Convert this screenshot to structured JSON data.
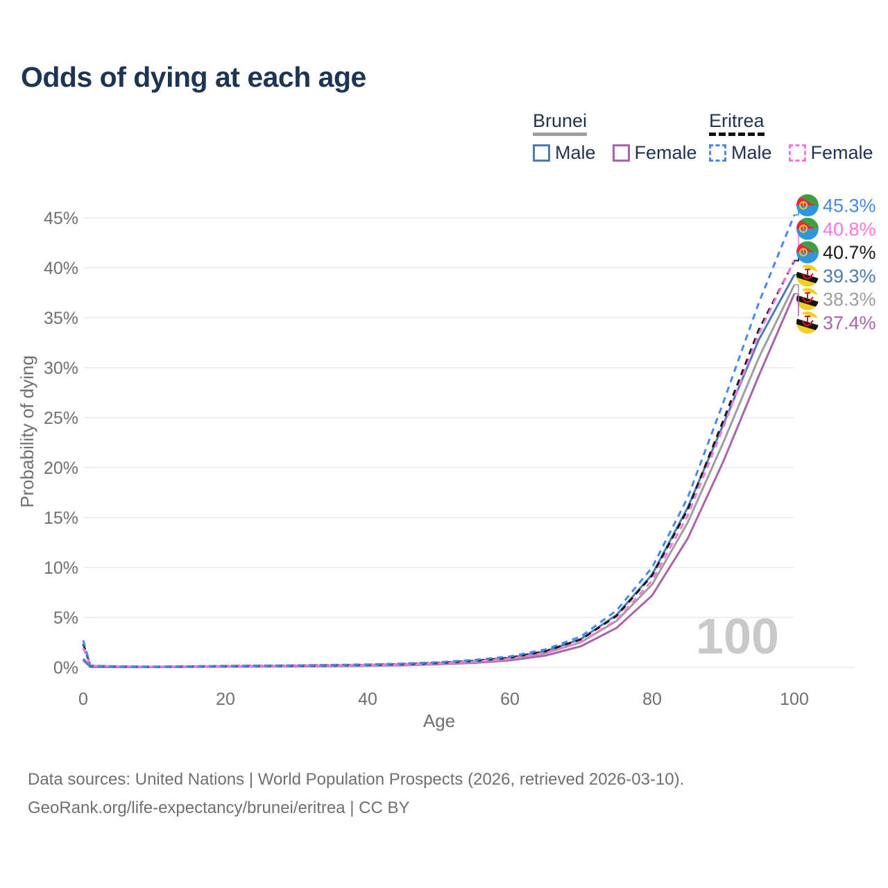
{
  "title": "Odds of dying at each age",
  "legend": {
    "groups": [
      {
        "name": "Brunei",
        "line_style": "solid",
        "underline_color": "#9e9e9e",
        "items": [
          {
            "label": "Male",
            "color": "#4a7cb5"
          },
          {
            "label": "Female",
            "color": "#ab64ab"
          }
        ]
      },
      {
        "name": "Eritrea",
        "line_style": "dashed",
        "underline_color": "#111111",
        "items": [
          {
            "label": "Male",
            "color": "#4589f0"
          },
          {
            "label": "Female",
            "color": "#ff74dd"
          }
        ]
      }
    ]
  },
  "chart_data": {
    "type": "line",
    "title": "Odds of dying at each age",
    "xlabel": "Age",
    "ylabel": "Probability of dying",
    "xlim": [
      0,
      100
    ],
    "ylim": [
      0,
      46
    ],
    "xticks": [
      0,
      20,
      40,
      60,
      80,
      100
    ],
    "yticks": [
      0,
      5,
      10,
      15,
      20,
      25,
      30,
      35,
      40,
      45
    ],
    "ytick_suffix": "%",
    "grid": true,
    "legend_position": "top-right",
    "watermark": "100",
    "ages": [
      0,
      1,
      5,
      10,
      15,
      20,
      25,
      30,
      35,
      40,
      45,
      50,
      55,
      60,
      65,
      70,
      75,
      80,
      85,
      90,
      95,
      100
    ],
    "series": [
      {
        "name": "Eritrea Male",
        "country": "Eritrea",
        "sex": "Male",
        "color": "#4589f0",
        "dashed": true,
        "flag": "eritrea",
        "end_label": "45.3%",
        "end_value": 45.3,
        "values": [
          2.7,
          0.18,
          0.1,
          0.08,
          0.11,
          0.15,
          0.18,
          0.21,
          0.25,
          0.3,
          0.38,
          0.52,
          0.75,
          1.1,
          1.8,
          3.1,
          5.7,
          10.0,
          17.0,
          26.5,
          36.5,
          45.3
        ]
      },
      {
        "name": "Eritrea Female",
        "country": "Eritrea",
        "sex": "Female",
        "color": "#ff74dd",
        "dashed": true,
        "flag": "eritrea",
        "end_label": "40.8%",
        "end_value": 40.8,
        "values": [
          1.95,
          0.15,
          0.08,
          0.06,
          0.08,
          0.11,
          0.13,
          0.15,
          0.19,
          0.23,
          0.29,
          0.41,
          0.58,
          0.86,
          1.46,
          2.52,
          4.75,
          8.7,
          15.2,
          24.0,
          33.4,
          40.8
        ]
      },
      {
        "name": "Eritrea Both sexes",
        "country": "Eritrea",
        "sex": "Both",
        "color": "#1a1a1a",
        "dashed": true,
        "flag": "eritrea",
        "end_label": "40.7%",
        "end_value": 40.7,
        "values": [
          2.35,
          0.16,
          0.09,
          0.07,
          0.1,
          0.13,
          0.16,
          0.18,
          0.22,
          0.26,
          0.33,
          0.46,
          0.66,
          0.97,
          1.62,
          2.8,
          5.15,
          9.2,
          15.8,
          24.7,
          33.8,
          40.7
        ]
      },
      {
        "name": "Brunei Male",
        "country": "Brunei",
        "sex": "Male",
        "color": "#4a7cb5",
        "dashed": false,
        "flag": "brunei",
        "end_label": "39.3%",
        "end_value": 39.3,
        "values": [
          0.85,
          0.07,
          0.04,
          0.04,
          0.07,
          0.1,
          0.12,
          0.14,
          0.17,
          0.22,
          0.29,
          0.43,
          0.63,
          0.96,
          1.62,
          2.85,
          5.25,
          9.3,
          16.0,
          24.3,
          32.8,
          39.3
        ]
      },
      {
        "name": "Brunei Both sexes",
        "country": "Brunei",
        "sex": "Both",
        "color": "#9e9e9e",
        "dashed": false,
        "flag": "brunei",
        "end_label": "38.3%",
        "end_value": 38.3,
        "values": [
          0.8,
          0.06,
          0.035,
          0.035,
          0.06,
          0.08,
          0.1,
          0.12,
          0.14,
          0.18,
          0.25,
          0.37,
          0.54,
          0.83,
          1.42,
          2.52,
          4.65,
          8.3,
          14.5,
          22.5,
          31.0,
          38.3
        ]
      },
      {
        "name": "Brunei Female",
        "country": "Brunei",
        "sex": "Female",
        "color": "#ab64ab",
        "dashed": false,
        "flag": "brunei",
        "end_label": "37.4%",
        "end_value": 37.4,
        "values": [
          0.7,
          0.055,
          0.03,
          0.03,
          0.05,
          0.07,
          0.08,
          0.1,
          0.12,
          0.15,
          0.21,
          0.31,
          0.45,
          0.7,
          1.18,
          2.12,
          3.95,
          7.2,
          12.9,
          20.6,
          29.2,
          37.4
        ]
      }
    ]
  },
  "footer": {
    "line1": "Data sources: United Nations | World Population Prospects (2026, retrieved 2026-03-10).",
    "line2": "GeoRank.org/life-expectancy/brunei/eritrea | CC BY"
  }
}
